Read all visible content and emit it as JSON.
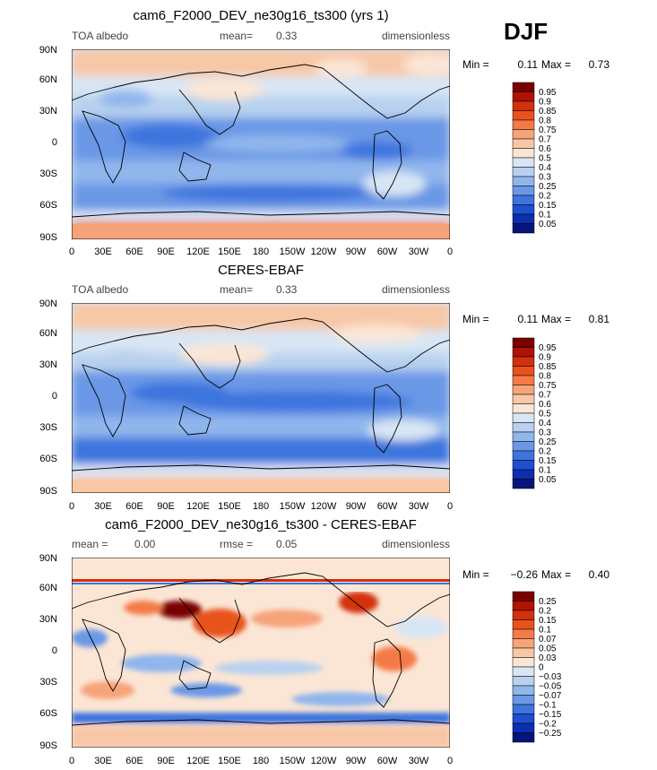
{
  "season": "DJF",
  "panels": [
    {
      "title": "cam6_F2000_DEV_ne30g16_ts300 (yrs 1)",
      "left_label": "TOA albedo",
      "center_label": "mean=",
      "center_value": "0.33",
      "right_label": "dimensionless",
      "min_label": "Min =",
      "min_value": "0.11",
      "max_label": "Max =",
      "max_value": "0.73",
      "colorbar": {
        "labels": [
          "0.95",
          "0.9",
          "0.85",
          "0.8",
          "0.75",
          "0.7",
          "0.6",
          "0.5",
          "0.4",
          "0.3",
          "0.25",
          "0.2",
          "0.15",
          "0.1",
          "0.05"
        ],
        "colors": [
          "#7a0000",
          "#b01204",
          "#d3300e",
          "#e8521f",
          "#f47a47",
          "#f7a37a",
          "#f7c7a6",
          "#fbe6d5",
          "#d8e6f4",
          "#b8d1ee",
          "#90b6ec",
          "#6b98e6",
          "#3e74de",
          "#1d4fd0",
          "#0b2fae",
          "#06157a"
        ]
      }
    },
    {
      "title": "CERES-EBAF",
      "left_label": "TOA albedo",
      "center_label": "mean=",
      "center_value": "0.33",
      "right_label": "dimensionless",
      "min_label": "Min =",
      "min_value": "0.11",
      "max_label": "Max =",
      "max_value": "0.81",
      "colorbar": {
        "labels": [
          "0.95",
          "0.9",
          "0.85",
          "0.8",
          "0.75",
          "0.7",
          "0.6",
          "0.5",
          "0.4",
          "0.3",
          "0.25",
          "0.2",
          "0.15",
          "0.1",
          "0.05"
        ],
        "colors": [
          "#7a0000",
          "#b01204",
          "#d3300e",
          "#e8521f",
          "#f47a47",
          "#f7a37a",
          "#f7c7a6",
          "#fbe6d5",
          "#d8e6f4",
          "#b8d1ee",
          "#90b6ec",
          "#6b98e6",
          "#3e74de",
          "#1d4fd0",
          "#0b2fae",
          "#06157a"
        ]
      }
    },
    {
      "title": "cam6_F2000_DEV_ne30g16_ts300 - CERES-EBAF",
      "left_label": "mean =",
      "left_value": "0.00",
      "center_label": "rmse =",
      "center_value": "0.05",
      "right_label": "dimensionless",
      "min_label": "Min =",
      "min_value": "−0.26",
      "max_label": "Max =",
      "max_value": "0.40",
      "colorbar": {
        "labels": [
          "0.25",
          "0.2",
          "0.15",
          "0.1",
          "0.07",
          "0.05",
          "0.03",
          "0",
          "−0.03",
          "−0.05",
          "−0.07",
          "−0.1",
          "−0.15",
          "−0.2",
          "−0.25"
        ],
        "colors": [
          "#7a0000",
          "#b01204",
          "#d3300e",
          "#e8521f",
          "#f47a47",
          "#f7a37a",
          "#f7c7a6",
          "#fbe6d5",
          "#d8e6f4",
          "#b8d1ee",
          "#90b6ec",
          "#6b98e6",
          "#3e74de",
          "#1d4fd0",
          "#0b2fae",
          "#06157a"
        ]
      }
    }
  ],
  "map_axes": {
    "x_ticks": [
      "0",
      "30E",
      "60E",
      "90E",
      "120E",
      "150E",
      "180",
      "150W",
      "120W",
      "90W",
      "60W",
      "30W",
      "0"
    ],
    "y_ticks": [
      "90N",
      "60N",
      "30N",
      "0",
      "30S",
      "60S",
      "90S"
    ]
  },
  "chart_data": [
    {
      "type": "heatmap",
      "title": "cam6_F2000_DEV_ne30g16_ts300 (yrs 1)",
      "variable": "TOA albedo",
      "units": "dimensionless",
      "mean": 0.33,
      "min": 0.11,
      "max": 0.73,
      "x_ticks": [
        "0",
        "30E",
        "60E",
        "90E",
        "120E",
        "150E",
        "180",
        "150W",
        "120W",
        "90W",
        "60W",
        "30W",
        "0"
      ],
      "y_ticks": [
        "90N",
        "60N",
        "30N",
        "0",
        "30S",
        "60S",
        "90S"
      ],
      "contour_levels": [
        0.05,
        0.1,
        0.15,
        0.2,
        0.25,
        0.3,
        0.4,
        0.5,
        0.6,
        0.7,
        0.75,
        0.8,
        0.85,
        0.9,
        0.95
      ]
    },
    {
      "type": "heatmap",
      "title": "CERES-EBAF",
      "variable": "TOA albedo",
      "units": "dimensionless",
      "mean": 0.33,
      "min": 0.11,
      "max": 0.81,
      "x_ticks": [
        "0",
        "30E",
        "60E",
        "90E",
        "120E",
        "150E",
        "180",
        "150W",
        "120W",
        "90W",
        "60W",
        "30W",
        "0"
      ],
      "y_ticks": [
        "90N",
        "60N",
        "30N",
        "0",
        "30S",
        "60S",
        "90S"
      ],
      "contour_levels": [
        0.05,
        0.1,
        0.15,
        0.2,
        0.25,
        0.3,
        0.4,
        0.5,
        0.6,
        0.7,
        0.75,
        0.8,
        0.85,
        0.9,
        0.95
      ]
    },
    {
      "type": "heatmap",
      "title": "cam6_F2000_DEV_ne30g16_ts300 - CERES-EBAF",
      "units": "dimensionless",
      "mean": 0.0,
      "rmse": 0.05,
      "min": -0.26,
      "max": 0.4,
      "x_ticks": [
        "0",
        "30E",
        "60E",
        "90E",
        "120E",
        "150E",
        "180",
        "150W",
        "120W",
        "90W",
        "60W",
        "30W",
        "0"
      ],
      "y_ticks": [
        "90N",
        "60N",
        "30N",
        "0",
        "30S",
        "60S",
        "90S"
      ],
      "contour_levels": [
        -0.25,
        -0.2,
        -0.15,
        -0.1,
        -0.07,
        -0.05,
        -0.03,
        0,
        0.03,
        0.05,
        0.07,
        0.1,
        0.15,
        0.2,
        0.25
      ]
    }
  ]
}
